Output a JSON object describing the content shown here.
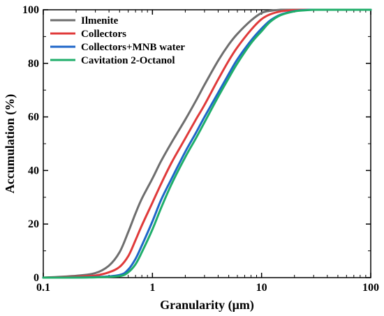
{
  "chart_data": {
    "type": "line",
    "title": "",
    "xlabel": "Granularity (μm)",
    "ylabel": "Accumulation (%)",
    "xscale": "log",
    "xlim": [
      0.1,
      100
    ],
    "ylim": [
      0,
      100
    ],
    "x_ticks": [
      "0.1",
      "1",
      "10",
      "100"
    ],
    "y_ticks": [
      "0",
      "20",
      "40",
      "60",
      "80",
      "100"
    ],
    "grid": false,
    "legend_position": "top-left",
    "series": [
      {
        "name": "Ilmenite",
        "color": "#6e6e6e",
        "x": [
          0.1,
          0.2,
          0.3,
          0.4,
          0.5,
          0.6,
          0.7,
          0.8,
          1.0,
          1.2,
          1.5,
          2.0,
          2.5,
          3.0,
          4.0,
          5.0,
          6.0,
          8.0,
          10.0,
          12.0,
          15.0,
          20.0,
          30.0,
          50.0,
          100.0
        ],
        "y": [
          0,
          0.7,
          1.7,
          4.5,
          9.5,
          17,
          24,
          29.5,
          37,
          43.5,
          50.5,
          59,
          66,
          72,
          81,
          87,
          91,
          96,
          98.8,
          99.6,
          100,
          100,
          100,
          100,
          100
        ]
      },
      {
        "name": "Collectors",
        "color": "#e03a3a",
        "x": [
          0.1,
          0.2,
          0.3,
          0.4,
          0.5,
          0.6,
          0.7,
          0.8,
          1.0,
          1.2,
          1.5,
          2.0,
          2.5,
          3.0,
          4.0,
          5.0,
          6.0,
          8.0,
          10.0,
          12.0,
          15.0,
          20.0,
          25.0,
          30.0,
          50.0,
          100.0
        ],
        "y": [
          0,
          0.3,
          0.8,
          2,
          4,
          8,
          14,
          19.5,
          28,
          35,
          43,
          52,
          59,
          64.5,
          74,
          81,
          86,
          92.5,
          96.5,
          98.3,
          99.4,
          99.9,
          100,
          100,
          100,
          100
        ]
      },
      {
        "name": "Collectors+MNB water",
        "color": "#1f66c8",
        "x": [
          0.1,
          0.3,
          0.5,
          0.6,
          0.7,
          0.8,
          1.0,
          1.2,
          1.5,
          2.0,
          2.5,
          3.0,
          4.0,
          5.0,
          6.0,
          8.0,
          10.0,
          12.0,
          15.0,
          20.0,
          25.0,
          30.0,
          35.0,
          50.0,
          100.0
        ],
        "y": [
          0,
          0.2,
          1,
          3,
          7,
          12,
          21,
          29,
          37,
          47,
          54,
          60,
          69,
          76,
          81.5,
          88.5,
          93,
          96,
          98.2,
          99.5,
          99.9,
          100,
          100,
          100,
          100
        ]
      },
      {
        "name": "Cavitation 2-Octanol",
        "color": "#1fae6a",
        "x": [
          0.1,
          0.3,
          0.5,
          0.6,
          0.7,
          0.8,
          1.0,
          1.2,
          1.5,
          2.0,
          2.5,
          3.0,
          4.0,
          5.0,
          6.0,
          8.0,
          10.0,
          12.0,
          15.0,
          20.0,
          25.0,
          30.0,
          35.0,
          50.0,
          100.0
        ],
        "y": [
          0,
          0.1,
          0.6,
          2,
          5,
          9.5,
          18,
          26,
          35,
          45,
          52,
          58,
          67.5,
          74.5,
          80,
          87.5,
          92,
          95.5,
          98,
          99.4,
          99.8,
          100,
          100,
          100,
          100
        ]
      }
    ]
  }
}
